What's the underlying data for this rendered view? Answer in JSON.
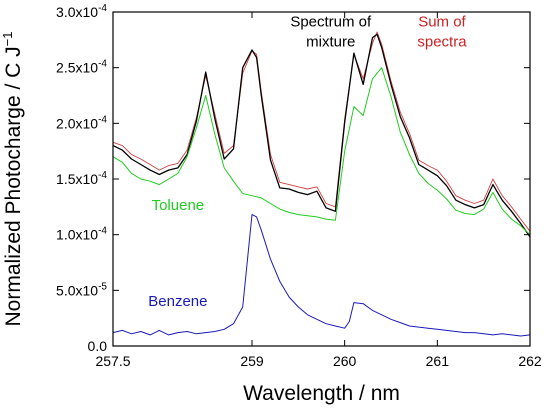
{
  "chart_data": {
    "type": "line",
    "xlabel": "Wavelength / nm",
    "ylabel": "Normalized Photocharge / C J",
    "ylabel_sup": "−1",
    "xlim": [
      257.5,
      262
    ],
    "ylim": [
      0,
      0.0003
    ],
    "grid": false,
    "x_ticks": [
      {
        "value": 257.5,
        "label": "257.5"
      },
      {
        "value": 259,
        "label": "259"
      },
      {
        "value": 260,
        "label": "260"
      },
      {
        "value": 261,
        "label": "261"
      },
      {
        "value": 262,
        "label": "262"
      }
    ],
    "y_ticks": [
      {
        "value": 0,
        "base": "0.0",
        "exp": ""
      },
      {
        "value": 5e-05,
        "base": "5.0x10",
        "exp": "-5"
      },
      {
        "value": 0.0001,
        "base": "1.0x10",
        "exp": "-4"
      },
      {
        "value": 0.00015,
        "base": "1.5x10",
        "exp": "-4"
      },
      {
        "value": 0.0002,
        "base": "2.0x10",
        "exp": "-4"
      },
      {
        "value": 0.00025,
        "base": "2.5x10",
        "exp": "-4"
      },
      {
        "value": 0.0003,
        "base": "3.0x10",
        "exp": "-4"
      }
    ],
    "annotations": [
      {
        "lines": [
          "Spectrum of",
          "mixture"
        ],
        "color": "#000000",
        "x": 259.85,
        "y": 0.000287
      },
      {
        "lines": [
          "Sum of",
          "spectra"
        ],
        "color": "#cc2222",
        "x": 261.05,
        "y": 0.000287
      },
      {
        "lines": [
          "Toluene"
        ],
        "color": "#22cc22",
        "x": 258.2,
        "y": 0.000122
      },
      {
        "lines": [
          "Benzene"
        ],
        "color": "#1a1ab8",
        "x": 258.2,
        "y": 3.6e-05
      }
    ],
    "series": [
      {
        "color": "#d04040",
        "width": 0.9,
        "x": [
          257.5,
          257.6,
          257.7,
          257.8,
          257.9,
          258.0,
          258.1,
          258.2,
          258.3,
          258.4,
          258.5,
          258.6,
          258.7,
          258.8,
          258.9,
          259.0,
          259.05,
          259.1,
          259.2,
          259.3,
          259.4,
          259.5,
          259.6,
          259.7,
          259.8,
          259.9,
          260.0,
          260.1,
          260.2,
          260.3,
          260.35,
          260.4,
          260.5,
          260.6,
          260.7,
          260.8,
          260.9,
          261.0,
          261.1,
          261.2,
          261.3,
          261.4,
          261.5,
          261.6,
          261.7,
          261.8,
          261.9,
          262.0
        ],
        "y": [
          0.000183,
          0.00018,
          0.000172,
          0.000168,
          0.000163,
          0.000158,
          0.000162,
          0.000164,
          0.000176,
          0.000205,
          0.000243,
          0.000208,
          0.000173,
          0.00018,
          0.000245,
          0.000265,
          0.000262,
          0.000228,
          0.000172,
          0.000147,
          0.000145,
          0.000143,
          0.000141,
          0.000143,
          0.000128,
          0.000125,
          0.000204,
          0.000262,
          0.00024,
          0.000272,
          0.000282,
          0.000271,
          0.000238,
          0.00021,
          0.000191,
          0.000167,
          0.000162,
          0.000158,
          0.000148,
          0.000135,
          0.000131,
          0.000128,
          0.000131,
          0.00015,
          0.000135,
          0.000125,
          0.000114,
          0.000103
        ]
      },
      {
        "color": "#000000",
        "width": 1.3,
        "x": [
          257.5,
          257.6,
          257.7,
          257.8,
          257.9,
          258.0,
          258.1,
          258.2,
          258.3,
          258.4,
          258.5,
          258.6,
          258.7,
          258.8,
          258.9,
          259.0,
          259.05,
          259.1,
          259.2,
          259.3,
          259.4,
          259.5,
          259.6,
          259.7,
          259.8,
          259.9,
          260.0,
          260.1,
          260.2,
          260.3,
          260.35,
          260.4,
          260.5,
          260.6,
          260.7,
          260.8,
          260.9,
          261.0,
          261.1,
          261.2,
          261.3,
          261.4,
          261.5,
          261.6,
          261.7,
          261.8,
          261.9,
          262.0
        ],
        "y": [
          0.00018,
          0.000176,
          0.000168,
          0.000163,
          0.000158,
          0.000154,
          0.000158,
          0.00016,
          0.000172,
          0.000202,
          0.000246,
          0.000204,
          0.000168,
          0.000177,
          0.00025,
          0.000266,
          0.000259,
          0.000225,
          0.000167,
          0.000142,
          0.000141,
          0.000138,
          0.000136,
          0.000139,
          0.000124,
          0.000121,
          0.000201,
          0.000263,
          0.000235,
          0.000277,
          0.00028,
          0.000268,
          0.000235,
          0.000206,
          0.000187,
          0.000163,
          0.000158,
          0.000153,
          0.000144,
          0.000131,
          0.000127,
          0.000124,
          0.000127,
          0.000145,
          0.000131,
          0.000121,
          0.00011,
          9.8e-05
        ]
      },
      {
        "color": "#22cc22",
        "width": 1.0,
        "x": [
          257.5,
          257.6,
          257.7,
          257.8,
          257.9,
          258.0,
          258.1,
          258.2,
          258.3,
          258.4,
          258.5,
          258.6,
          258.7,
          258.8,
          258.9,
          259.0,
          259.1,
          259.2,
          259.3,
          259.4,
          259.5,
          259.6,
          259.7,
          259.8,
          259.9,
          260.0,
          260.1,
          260.2,
          260.3,
          260.4,
          260.5,
          260.6,
          260.7,
          260.8,
          260.9,
          261.0,
          261.1,
          261.2,
          261.3,
          261.4,
          261.5,
          261.6,
          261.7,
          261.8,
          261.9,
          262.0
        ],
        "y": [
          0.00017,
          0.000165,
          0.000155,
          0.00015,
          0.000148,
          0.000145,
          0.00015,
          0.000155,
          0.00017,
          0.000196,
          0.000225,
          0.00019,
          0.00016,
          0.000148,
          0.000137,
          0.000135,
          0.000133,
          0.000128,
          0.000123,
          0.00012,
          0.000118,
          0.000117,
          0.000116,
          0.000114,
          0.000113,
          0.000175,
          0.000215,
          0.000207,
          0.00024,
          0.00025,
          0.000224,
          0.000192,
          0.000172,
          0.000155,
          0.000146,
          0.00014,
          0.000132,
          0.000122,
          0.000119,
          0.000118,
          0.000123,
          0.000138,
          0.000123,
          0.000114,
          0.000108,
          0.0001
        ]
      },
      {
        "color": "#1a1ab8",
        "width": 1.0,
        "x": [
          257.5,
          257.6,
          257.7,
          257.8,
          257.9,
          258.0,
          258.1,
          258.2,
          258.3,
          258.4,
          258.5,
          258.6,
          258.7,
          258.8,
          258.9,
          259.0,
          259.05,
          259.1,
          259.2,
          259.3,
          259.4,
          259.5,
          259.6,
          259.7,
          259.8,
          259.9,
          260.0,
          260.05,
          260.1,
          260.2,
          260.3,
          260.4,
          260.5,
          260.6,
          260.7,
          260.8,
          260.9,
          261.0,
          261.1,
          261.2,
          261.3,
          261.4,
          261.5,
          261.6,
          261.7,
          261.8,
          261.9,
          262.0
        ],
        "y": [
          1.2e-05,
          1.4e-05,
          1.1e-05,
          1.3e-05,
          1e-05,
          1.4e-05,
          1e-05,
          1.2e-05,
          1.3e-05,
          1.1e-05,
          1.2e-05,
          1.3e-05,
          1.5e-05,
          2e-05,
          3.5e-05,
          0.000118,
          0.000116,
          0.000104,
          7.8e-05,
          5.8e-05,
          4.4e-05,
          3.5e-05,
          2.8e-05,
          2.4e-05,
          2e-05,
          1.8e-05,
          1.6e-05,
          2.2e-05,
          3.9e-05,
          3.8e-05,
          3.2e-05,
          2.8e-05,
          2.4e-05,
          2.1e-05,
          1.8e-05,
          1.7e-05,
          1.6e-05,
          1.5e-05,
          1.4e-05,
          1.3e-05,
          1.2e-05,
          1.2e-05,
          1.1e-05,
          1e-05,
          1.1e-05,
          1e-05,
          9e-06,
          1e-05
        ]
      }
    ]
  }
}
